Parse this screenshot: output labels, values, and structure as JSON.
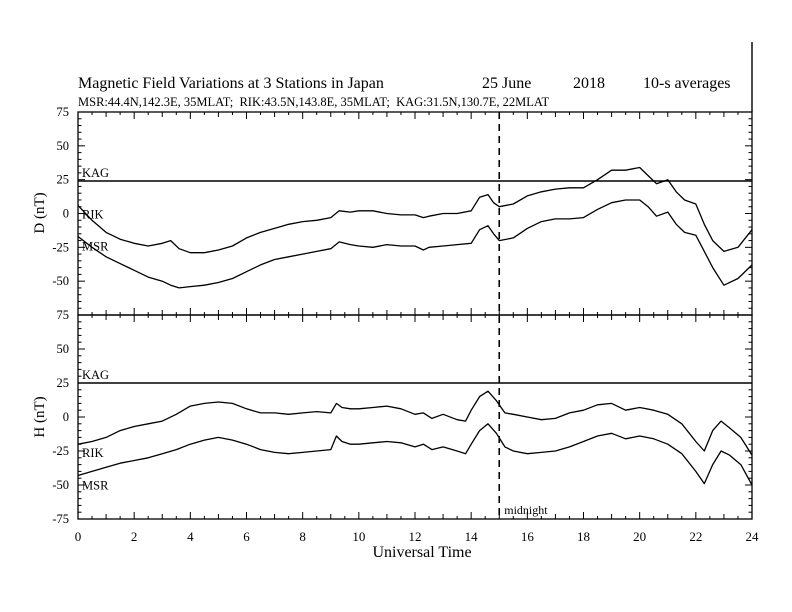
{
  "header": {
    "title": "Magnetic Field Variations at 3 Stations in Japan",
    "date": "25 June",
    "year": "2018",
    "averaging": "10-s averages",
    "stations_line": "MSR:44.4N,142.3E, 35MLAT;  RIK:43.5N,143.8E, 35MLAT;  KAG:31.5N,130.7E, 22MLAT"
  },
  "chart_data": [
    {
      "type": "line",
      "panel": "top",
      "ylabel": "D (nT)",
      "ylim": [
        -75,
        75
      ],
      "yticks": [
        75,
        50,
        25,
        0,
        -25,
        -50,
        -75
      ],
      "xlim": [
        0,
        24
      ],
      "series": [
        {
          "name": "KAG",
          "x": [
            0,
            24
          ],
          "y": [
            24,
            24
          ]
        },
        {
          "name": "RIK",
          "x": [
            0,
            0.5,
            1,
            1.5,
            2,
            2.5,
            3,
            3.3,
            3.6,
            4,
            4.5,
            5,
            5.5,
            6,
            6.5,
            7,
            7.5,
            8,
            8.5,
            9,
            9.3,
            9.7,
            10,
            10.5,
            11,
            11.5,
            12,
            12.3,
            12.5,
            13,
            13.5,
            14,
            14.3,
            14.6,
            14.8,
            15,
            15.5,
            16,
            16.5,
            17,
            17.5,
            18,
            18.5,
            19,
            19.5,
            20,
            20.3,
            20.6,
            21,
            21.3,
            21.6,
            22,
            22.3,
            22.6,
            23,
            23.5,
            24
          ],
          "y": [
            6,
            -5,
            -14,
            -19,
            -22,
            -24,
            -22,
            -20,
            -26,
            -29,
            -29,
            -27,
            -24,
            -18,
            -14,
            -11,
            -8,
            -6,
            -5,
            -3,
            2,
            1,
            2,
            2,
            0,
            -1,
            -1,
            -3,
            -2,
            0,
            0,
            2,
            12,
            14,
            8,
            5,
            7,
            13,
            16,
            18,
            19,
            19,
            25,
            32,
            32,
            34,
            28,
            22,
            25,
            16,
            10,
            7,
            -8,
            -20,
            -28,
            -25,
            -12
          ]
        },
        {
          "name": "MSR",
          "x": [
            0,
            0.5,
            1,
            1.5,
            2,
            2.5,
            3,
            3.3,
            3.6,
            4,
            4.5,
            5,
            5.5,
            6,
            6.5,
            7,
            7.5,
            8,
            8.5,
            9,
            9.3,
            9.7,
            10,
            10.5,
            11,
            11.5,
            12,
            12.3,
            12.5,
            13,
            13.5,
            14,
            14.3,
            14.6,
            14.8,
            15,
            15.5,
            16,
            16.5,
            17,
            17.5,
            18,
            18.5,
            19,
            19.5,
            20,
            20.3,
            20.6,
            21,
            21.3,
            21.6,
            22,
            22.3,
            22.6,
            23,
            23.5,
            24
          ],
          "y": [
            -17,
            -25,
            -32,
            -37,
            -42,
            -47,
            -50,
            -53,
            -55,
            -54,
            -53,
            -51,
            -48,
            -43,
            -38,
            -34,
            -32,
            -30,
            -28,
            -26,
            -21,
            -23,
            -24,
            -25,
            -23,
            -24,
            -24,
            -27,
            -25,
            -24,
            -23,
            -22,
            -12,
            -9,
            -15,
            -20,
            -18,
            -11,
            -6,
            -4,
            -4,
            -3,
            3,
            8,
            10,
            10,
            5,
            -2,
            1,
            -8,
            -14,
            -16,
            -28,
            -40,
            -53,
            -48,
            -38
          ]
        }
      ],
      "labels": [
        "KAG",
        "RIK",
        "MSR"
      ]
    },
    {
      "type": "line",
      "panel": "bottom",
      "ylabel": "H (nT)",
      "ylim": [
        -75,
        75
      ],
      "yticks": [
        75,
        50,
        25,
        0,
        -25,
        -50,
        -75
      ],
      "xlim": [
        0,
        24
      ],
      "xticks": [
        0,
        2,
        4,
        6,
        8,
        10,
        12,
        14,
        16,
        18,
        20,
        22,
        24
      ],
      "xlabel": "Universal Time",
      "series": [
        {
          "name": "KAG",
          "x": [
            0,
            24
          ],
          "y": [
            25,
            25
          ]
        },
        {
          "name": "RIK",
          "x": [
            0,
            0.5,
            1,
            1.5,
            2,
            2.5,
            3,
            3.5,
            4,
            4.5,
            5,
            5.5,
            6,
            6.5,
            7,
            7.5,
            8,
            8.5,
            9,
            9.2,
            9.4,
            9.7,
            10,
            10.5,
            11,
            11.5,
            12,
            12.3,
            12.6,
            13,
            13.5,
            13.8,
            14,
            14.3,
            14.6,
            14.9,
            15.2,
            15.5,
            16,
            16.5,
            17,
            17.5,
            18,
            18.5,
            19,
            19.5,
            20,
            20.5,
            21,
            21.5,
            22,
            22.3,
            22.6,
            22.9,
            23.2,
            23.6,
            24
          ],
          "y": [
            -20,
            -18,
            -15,
            -10,
            -7,
            -5,
            -3,
            2,
            8,
            10,
            11,
            10,
            6,
            3,
            3,
            2,
            3,
            4,
            3,
            10,
            7,
            6,
            6,
            7,
            8,
            6,
            2,
            3,
            -1,
            2,
            -2,
            -3,
            5,
            15,
            19,
            12,
            3,
            2,
            0,
            -2,
            -1,
            3,
            5,
            9,
            10,
            5,
            7,
            5,
            2,
            -5,
            -18,
            -25,
            -10,
            -3,
            -8,
            -15,
            -28
          ]
        },
        {
          "name": "MSR",
          "x": [
            0,
            0.5,
            1,
            1.5,
            2,
            2.5,
            3,
            3.5,
            4,
            4.5,
            5,
            5.5,
            6,
            6.5,
            7,
            7.5,
            8,
            8.5,
            9,
            9.2,
            9.4,
            9.7,
            10,
            10.5,
            11,
            11.5,
            12,
            12.3,
            12.6,
            13,
            13.5,
            13.8,
            14,
            14.3,
            14.6,
            14.9,
            15.2,
            15.5,
            16,
            16.5,
            17,
            17.5,
            18,
            18.5,
            19,
            19.5,
            20,
            20.5,
            21,
            21.5,
            22,
            22.3,
            22.6,
            22.9,
            23.2,
            23.6,
            24
          ],
          "y": [
            -43,
            -40,
            -37,
            -34,
            -32,
            -30,
            -27,
            -24,
            -20,
            -17,
            -15,
            -17,
            -20,
            -24,
            -26,
            -27,
            -26,
            -25,
            -24,
            -14,
            -18,
            -20,
            -20,
            -19,
            -18,
            -19,
            -22,
            -20,
            -24,
            -22,
            -25,
            -27,
            -20,
            -10,
            -5,
            -12,
            -22,
            -25,
            -27,
            -26,
            -25,
            -22,
            -18,
            -14,
            -12,
            -16,
            -14,
            -16,
            -20,
            -27,
            -40,
            -49,
            -35,
            -25,
            -28,
            -35,
            -50
          ]
        }
      ],
      "labels": [
        "KAG",
        "RIK",
        "MSR"
      ],
      "annotations": [
        {
          "text": "midnight",
          "x": 15
        }
      ]
    }
  ],
  "midnight_ut": 15
}
